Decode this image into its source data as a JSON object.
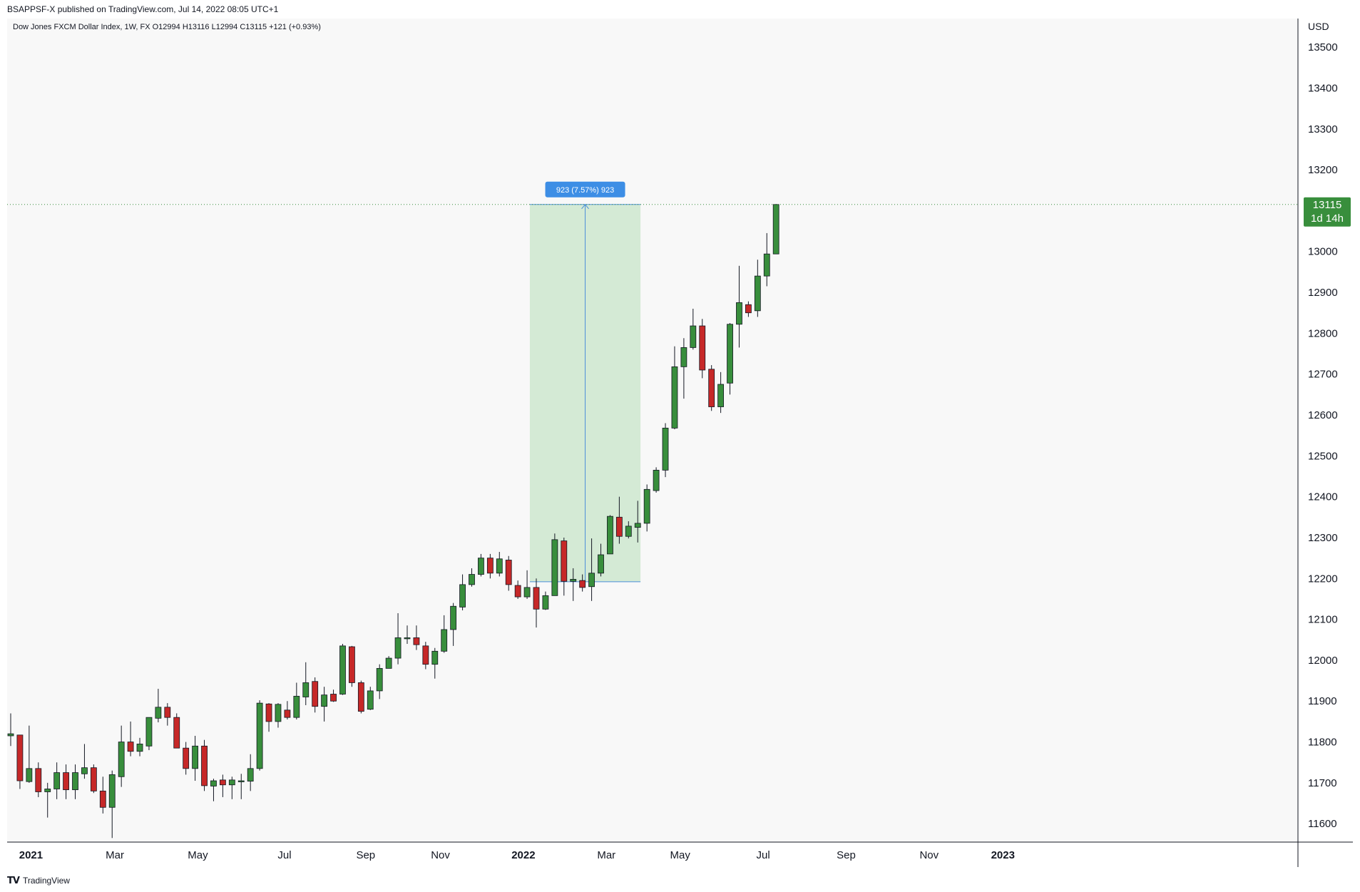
{
  "publish_line": "BSAPPSF-X published on TradingView.com, Jul 14, 2022 08:05 UTC+1",
  "legend": "Dow Jones FXCM Dollar Index, 1W, FX  O12994  H13116  L12994  C13115  +121 (+0.93%)",
  "currency": "USD",
  "footer": {
    "brand": "TradingView",
    "logo_icon": "tradingview-logo-icon"
  },
  "colors": {
    "up": "#388e3c",
    "down": "#c62828",
    "wick": "#131722",
    "measure_fill": "#d4ead5",
    "measure_line": "#4b8fd9",
    "measure_label_bg": "#3d8ee5",
    "price_tag_bg": "#388e3c",
    "plot_bg": "#f8f8f8"
  },
  "chart_data": {
    "type": "candlestick",
    "timeframe": "1W",
    "ylim": [
      11555,
      13570
    ],
    "yticks": [
      11600,
      11700,
      11800,
      11900,
      12000,
      12100,
      12200,
      12300,
      12400,
      12500,
      12600,
      12700,
      12800,
      12900,
      13000,
      13100,
      13200,
      13300,
      13400,
      13500
    ],
    "x_labels": [
      {
        "label": "2021",
        "index": 2.2,
        "bold": true
      },
      {
        "label": "Mar",
        "index": 11.3
      },
      {
        "label": "May",
        "index": 20.3
      },
      {
        "label": "Jul",
        "index": 29.7
      },
      {
        "label": "Sep",
        "index": 38.5
      },
      {
        "label": "Nov",
        "index": 46.6
      },
      {
        "label": "2022",
        "index": 55.6,
        "bold": true
      },
      {
        "label": "Mar",
        "index": 64.6
      },
      {
        "label": "May",
        "index": 72.6
      },
      {
        "label": "Jul",
        "index": 81.6
      },
      {
        "label": "Sep",
        "index": 90.6
      },
      {
        "label": "Nov",
        "index": 99.6
      },
      {
        "label": "2023",
        "index": 107.6,
        "bold": true
      }
    ],
    "last_price": {
      "value": 13115,
      "countdown": "1d 14h"
    },
    "measure": {
      "start_index": 56.3,
      "end_index": 68.3,
      "from": 12192,
      "to": 13115,
      "label": "923 (7.57%) 923"
    },
    "candles": [
      {
        "o": 11815,
        "h": 11870,
        "l": 11790,
        "c": 11820
      },
      {
        "o": 11817,
        "h": 11810,
        "l": 11685,
        "c": 11705
      },
      {
        "o": 11703,
        "h": 11840,
        "l": 11700,
        "c": 11735
      },
      {
        "o": 11735,
        "h": 11750,
        "l": 11665,
        "c": 11678
      },
      {
        "o": 11678,
        "h": 11700,
        "l": 11615,
        "c": 11685
      },
      {
        "o": 11685,
        "h": 11750,
        "l": 11660,
        "c": 11725
      },
      {
        "o": 11725,
        "h": 11745,
        "l": 11660,
        "c": 11683
      },
      {
        "o": 11683,
        "h": 11745,
        "l": 11660,
        "c": 11725
      },
      {
        "o": 11722,
        "h": 11795,
        "l": 11710,
        "c": 11737
      },
      {
        "o": 11737,
        "h": 11745,
        "l": 11675,
        "c": 11680
      },
      {
        "o": 11680,
        "h": 11715,
        "l": 11625,
        "c": 11640
      },
      {
        "o": 11640,
        "h": 11730,
        "l": 11565,
        "c": 11720
      },
      {
        "o": 11715,
        "h": 11840,
        "l": 11690,
        "c": 11800
      },
      {
        "o": 11800,
        "h": 11850,
        "l": 11765,
        "c": 11777
      },
      {
        "o": 11777,
        "h": 11810,
        "l": 11765,
        "c": 11795
      },
      {
        "o": 11790,
        "h": 11860,
        "l": 11780,
        "c": 11860
      },
      {
        "o": 11858,
        "h": 11930,
        "l": 11848,
        "c": 11885
      },
      {
        "o": 11885,
        "h": 11895,
        "l": 11840,
        "c": 11860
      },
      {
        "o": 11860,
        "h": 11870,
        "l": 11795,
        "c": 11785
      },
      {
        "o": 11785,
        "h": 11800,
        "l": 11720,
        "c": 11735
      },
      {
        "o": 11735,
        "h": 11815,
        "l": 11705,
        "c": 11790
      },
      {
        "o": 11790,
        "h": 11805,
        "l": 11680,
        "c": 11693
      },
      {
        "o": 11692,
        "h": 11710,
        "l": 11655,
        "c": 11705
      },
      {
        "o": 11707,
        "h": 11720,
        "l": 11665,
        "c": 11695
      },
      {
        "o": 11695,
        "h": 11715,
        "l": 11660,
        "c": 11707
      },
      {
        "o": 11705,
        "h": 11722,
        "l": 11660,
        "c": 11705
      },
      {
        "o": 11704,
        "h": 11770,
        "l": 11680,
        "c": 11735
      },
      {
        "o": 11735,
        "h": 11902,
        "l": 11730,
        "c": 11895
      },
      {
        "o": 11893,
        "h": 11895,
        "l": 11825,
        "c": 11850
      },
      {
        "o": 11850,
        "h": 11895,
        "l": 11835,
        "c": 11892
      },
      {
        "o": 11878,
        "h": 11900,
        "l": 11855,
        "c": 11860
      },
      {
        "o": 11860,
        "h": 11945,
        "l": 11855,
        "c": 11912
      },
      {
        "o": 11910,
        "h": 11995,
        "l": 11890,
        "c": 11945
      },
      {
        "o": 11948,
        "h": 11958,
        "l": 11872,
        "c": 11887
      },
      {
        "o": 11887,
        "h": 11935,
        "l": 11850,
        "c": 11915
      },
      {
        "o": 11917,
        "h": 11928,
        "l": 11898,
        "c": 11900
      },
      {
        "o": 11917,
        "h": 12040,
        "l": 11915,
        "c": 12035
      },
      {
        "o": 12033,
        "h": 12035,
        "l": 11935,
        "c": 11945
      },
      {
        "o": 11945,
        "h": 11950,
        "l": 11870,
        "c": 11875
      },
      {
        "o": 11880,
        "h": 11935,
        "l": 11878,
        "c": 11925
      },
      {
        "o": 11925,
        "h": 11990,
        "l": 11905,
        "c": 11980
      },
      {
        "o": 11980,
        "h": 12010,
        "l": 11980,
        "c": 12005
      },
      {
        "o": 12005,
        "h": 12115,
        "l": 11990,
        "c": 12055
      },
      {
        "o": 12053,
        "h": 12085,
        "l": 12040,
        "c": 12055
      },
      {
        "o": 12055,
        "h": 12085,
        "l": 12025,
        "c": 12038
      },
      {
        "o": 12035,
        "h": 12045,
        "l": 11978,
        "c": 11990
      },
      {
        "o": 11990,
        "h": 12030,
        "l": 11955,
        "c": 12022
      },
      {
        "o": 12022,
        "h": 12110,
        "l": 12018,
        "c": 12075
      },
      {
        "o": 12075,
        "h": 12140,
        "l": 12035,
        "c": 12132
      },
      {
        "o": 12130,
        "h": 12210,
        "l": 12122,
        "c": 12185
      },
      {
        "o": 12185,
        "h": 12225,
        "l": 12180,
        "c": 12210
      },
      {
        "o": 12210,
        "h": 12260,
        "l": 12205,
        "c": 12250
      },
      {
        "o": 12250,
        "h": 12260,
        "l": 12200,
        "c": 12213
      },
      {
        "o": 12213,
        "h": 12265,
        "l": 12205,
        "c": 12248
      },
      {
        "o": 12245,
        "h": 12255,
        "l": 12170,
        "c": 12185
      },
      {
        "o": 12183,
        "h": 12195,
        "l": 12150,
        "c": 12155
      },
      {
        "o": 12155,
        "h": 12220,
        "l": 12150,
        "c": 12178
      },
      {
        "o": 12178,
        "h": 12200,
        "l": 12080,
        "c": 12125
      },
      {
        "o": 12125,
        "h": 12168,
        "l": 12123,
        "c": 12158
      },
      {
        "o": 12158,
        "h": 12310,
        "l": 12160,
        "c": 12295
      },
      {
        "o": 12292,
        "h": 12300,
        "l": 12158,
        "c": 12193
      },
      {
        "o": 12193,
        "h": 12225,
        "l": 12145,
        "c": 12198
      },
      {
        "o": 12195,
        "h": 12210,
        "l": 12168,
        "c": 12178
      },
      {
        "o": 12180,
        "h": 12298,
        "l": 12145,
        "c": 12213
      },
      {
        "o": 12213,
        "h": 12285,
        "l": 12205,
        "c": 12258
      },
      {
        "o": 12260,
        "h": 12355,
        "l": 12260,
        "c": 12352
      },
      {
        "o": 12350,
        "h": 12400,
        "l": 12285,
        "c": 12303
      },
      {
        "o": 12303,
        "h": 12340,
        "l": 12298,
        "c": 12328
      },
      {
        "o": 12325,
        "h": 12390,
        "l": 12288,
        "c": 12335
      },
      {
        "o": 12335,
        "h": 12430,
        "l": 12315,
        "c": 12418
      },
      {
        "o": 12415,
        "h": 12472,
        "l": 12410,
        "c": 12465
      },
      {
        "o": 12465,
        "h": 12580,
        "l": 12448,
        "c": 12568
      },
      {
        "o": 12568,
        "h": 12768,
        "l": 12565,
        "c": 12718
      },
      {
        "o": 12718,
        "h": 12788,
        "l": 12640,
        "c": 12765
      },
      {
        "o": 12765,
        "h": 12860,
        "l": 12760,
        "c": 12818
      },
      {
        "o": 12818,
        "h": 12835,
        "l": 12690,
        "c": 12710
      },
      {
        "o": 12712,
        "h": 12722,
        "l": 12610,
        "c": 12620
      },
      {
        "o": 12620,
        "h": 12705,
        "l": 12605,
        "c": 12675
      },
      {
        "o": 12678,
        "h": 12825,
        "l": 12650,
        "c": 12822
      },
      {
        "o": 12822,
        "h": 12965,
        "l": 12765,
        "c": 12875
      },
      {
        "o": 12870,
        "h": 12878,
        "l": 12840,
        "c": 12850
      },
      {
        "o": 12855,
        "h": 12980,
        "l": 12840,
        "c": 12940
      },
      {
        "o": 12940,
        "h": 13045,
        "l": 12915,
        "c": 12994
      },
      {
        "o": 12994,
        "h": 13116,
        "l": 12994,
        "c": 13115
      }
    ]
  }
}
